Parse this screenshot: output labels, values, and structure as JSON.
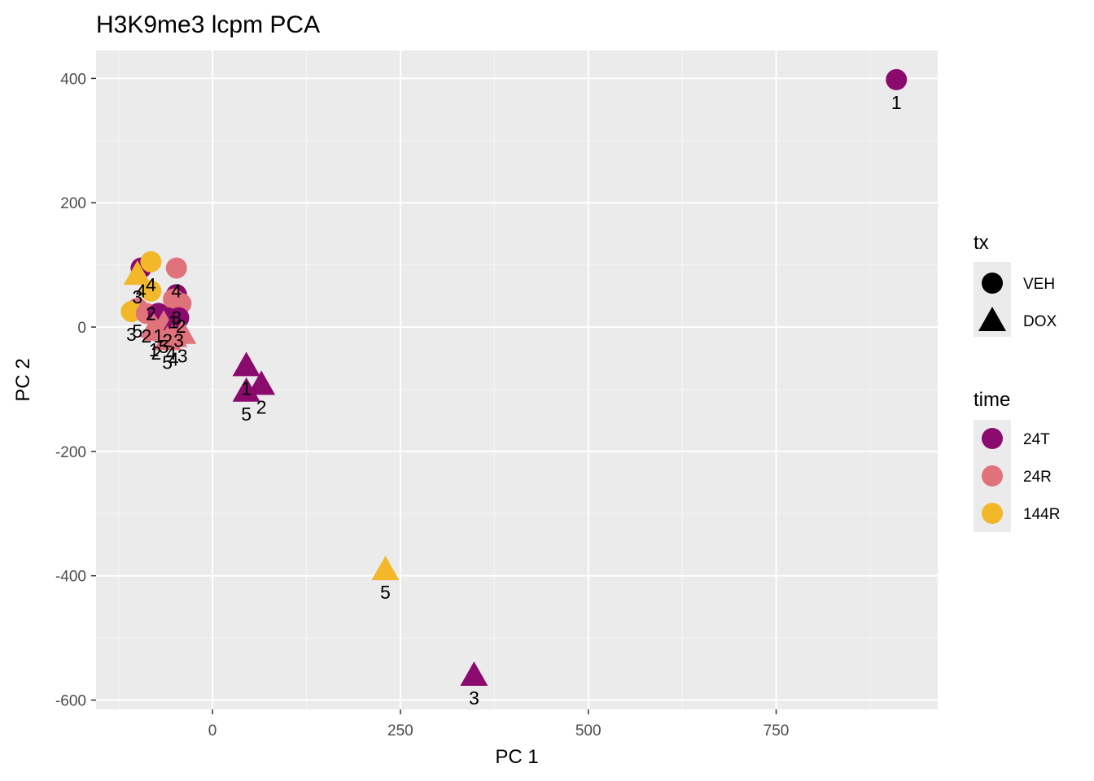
{
  "chart_data": {
    "type": "scatter",
    "title": "H3K9me3 lcpm PCA",
    "xlabel": "PC 1",
    "ylabel": "PC 2",
    "xlim": [
      -155,
      965
    ],
    "ylim": [
      -615,
      445
    ],
    "xticks": [
      0,
      250,
      500,
      750
    ],
    "yticks": [
      -600,
      -400,
      -200,
      0,
      200,
      400
    ],
    "grid": true,
    "colors": {
      "24T": "#8B0A6E",
      "24R": "#E0727C",
      "144R": "#F2B82A"
    },
    "legend": [
      {
        "title": "tx",
        "entries": [
          {
            "label": "VEH",
            "shape": "circle"
          },
          {
            "label": "DOX",
            "shape": "triangle"
          }
        ]
      },
      {
        "title": "time",
        "entries": [
          {
            "label": "24T",
            "shape": "circle"
          },
          {
            "label": "24R",
            "shape": "circle"
          },
          {
            "label": "144R",
            "shape": "circle"
          }
        ]
      }
    ],
    "points": [
      {
        "x": 910,
        "y": 398,
        "time": "24T",
        "tx": "VEH",
        "label": "1"
      },
      {
        "x": 230,
        "y": -390,
        "time": "144R",
        "tx": "DOX",
        "label": "5"
      },
      {
        "x": 348,
        "y": -560,
        "time": "24T",
        "tx": "DOX",
        "label": "3"
      },
      {
        "x": 45,
        "y": -62,
        "time": "24T",
        "tx": "DOX",
        "label": "1"
      },
      {
        "x": 65,
        "y": -92,
        "time": "24T",
        "tx": "DOX",
        "label": "2"
      },
      {
        "x": 45,
        "y": -103,
        "time": "24T",
        "tx": "DOX",
        "label": "5"
      },
      {
        "x": -95,
        "y": 95,
        "time": "24T",
        "tx": "VEH",
        "label": "4"
      },
      {
        "x": -82,
        "y": 105,
        "time": "144R",
        "tx": "VEH",
        "label": "4"
      },
      {
        "x": -48,
        "y": 95,
        "time": "24R",
        "tx": "VEH",
        "label": "4"
      },
      {
        "x": -100,
        "y": 85,
        "time": "144R",
        "tx": "DOX",
        "label": "3"
      },
      {
        "x": -48,
        "y": 52,
        "time": "24T",
        "tx": "VEH",
        "label": "3"
      },
      {
        "x": -52,
        "y": 45,
        "time": "24R",
        "tx": "VEH",
        "label": "1"
      },
      {
        "x": -42,
        "y": 38,
        "time": "24R",
        "tx": "VEH",
        "label": "2"
      },
      {
        "x": -82,
        "y": 58,
        "time": "144R",
        "tx": "VEH",
        "label": "2"
      },
      {
        "x": -100,
        "y": 30,
        "time": "24R",
        "tx": "VEH",
        "label": "5"
      },
      {
        "x": -108,
        "y": 25,
        "time": "144R",
        "tx": "VEH",
        "label": "3"
      },
      {
        "x": -88,
        "y": 22,
        "time": "24R",
        "tx": "VEH",
        "label": "2"
      },
      {
        "x": -72,
        "y": 22,
        "time": "24T",
        "tx": "VEH",
        "label": "1"
      },
      {
        "x": -60,
        "y": 15,
        "time": "24T",
        "tx": "VEH",
        "label": "2"
      },
      {
        "x": -45,
        "y": 15,
        "time": "24T",
        "tx": "VEH",
        "label": "3"
      },
      {
        "x": -65,
        "y": 5,
        "time": "24R",
        "tx": "DOX",
        "label": "5"
      },
      {
        "x": -55,
        "y": -5,
        "time": "24T",
        "tx": "DOX",
        "label": "4"
      },
      {
        "x": -40,
        "y": -10,
        "time": "24R",
        "tx": "DOX",
        "label": "3"
      },
      {
        "x": -52,
        "y": -15,
        "time": "24R",
        "tx": "DOX",
        "label": "4"
      },
      {
        "x": -75,
        "y": -5,
        "time": "24R",
        "tx": "DOX",
        "label": "2"
      },
      {
        "x": -60,
        "y": -20,
        "time": "24R",
        "tx": "DOX",
        "label": "5"
      },
      {
        "x": -78,
        "y": 0,
        "time": "24R",
        "tx": "DOX",
        "label": "1"
      }
    ]
  }
}
